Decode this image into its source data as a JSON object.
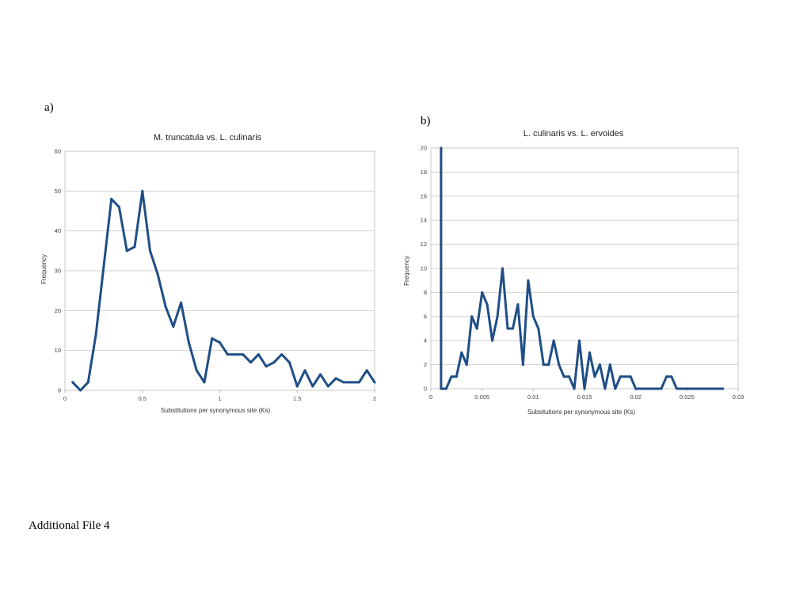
{
  "labels": {
    "panel_a": "a)",
    "panel_b": "b)",
    "footer": "Additional File 4"
  },
  "colors": {
    "series": "#1f4e86",
    "grid": "#d0d0d0"
  },
  "chart_data": [
    {
      "type": "line",
      "title": "M. truncatula vs. L. culinaris",
      "xlabel": "Substitutions per synonymous site (Ks)",
      "ylabel": "Frequency",
      "xlim": [
        0,
        2
      ],
      "ylim": [
        0,
        60
      ],
      "xticks": [
        0,
        0.5,
        1,
        1.5,
        2
      ],
      "xtick_labels": [
        "0",
        "0.5",
        "1",
        "1.5",
        "2"
      ],
      "yticks": [
        0,
        10,
        20,
        30,
        40,
        50,
        60
      ],
      "grid": true,
      "x": [
        0.05,
        0.1,
        0.15,
        0.2,
        0.25,
        0.3,
        0.35,
        0.4,
        0.45,
        0.5,
        0.55,
        0.6,
        0.65,
        0.7,
        0.75,
        0.8,
        0.85,
        0.9,
        0.95,
        1.0,
        1.05,
        1.1,
        1.15,
        1.2,
        1.25,
        1.3,
        1.35,
        1.4,
        1.45,
        1.5,
        1.55,
        1.6,
        1.65,
        1.7,
        1.75,
        1.8,
        1.85,
        1.9,
        1.95,
        2.0
      ],
      "y": [
        2,
        0,
        2,
        14,
        31,
        48,
        46,
        35,
        36,
        50,
        35,
        29,
        21,
        16,
        22,
        12,
        5,
        2,
        13,
        12,
        9,
        9,
        9,
        7,
        9,
        6,
        7,
        9,
        7,
        1,
        5,
        1,
        4,
        1,
        3,
        2,
        2,
        2,
        5,
        2
      ]
    },
    {
      "type": "line",
      "title": "L. culinaris vs. L. ervoides",
      "xlabel": "Subsitutions per synonymous site (Ks)",
      "ylabel": "Frequency",
      "xlim": [
        0,
        0.03
      ],
      "ylim": [
        0,
        20
      ],
      "xticks": [
        0,
        0.005,
        0.01,
        0.015,
        0.02,
        0.025,
        0.03
      ],
      "xtick_labels": [
        "0",
        "0.005",
        "0.01",
        "0.015",
        "0.02",
        "0.025",
        "0.03"
      ],
      "yticks": [
        0,
        2,
        4,
        6,
        8,
        10,
        12,
        14,
        16,
        18,
        20
      ],
      "grid": true,
      "x": [
        0.001,
        0.001,
        0.0015,
        0.002,
        0.0025,
        0.003,
        0.0035,
        0.004,
        0.0045,
        0.005,
        0.0055,
        0.006,
        0.0065,
        0.007,
        0.0075,
        0.008,
        0.0085,
        0.009,
        0.0095,
        0.01,
        0.0105,
        0.011,
        0.0115,
        0.012,
        0.0125,
        0.013,
        0.0135,
        0.014,
        0.0145,
        0.015,
        0.0155,
        0.016,
        0.0165,
        0.017,
        0.0175,
        0.018,
        0.0185,
        0.019,
        0.0195,
        0.02,
        0.0205,
        0.021,
        0.0215,
        0.022,
        0.0225,
        0.023,
        0.0235,
        0.024,
        0.0245,
        0.025,
        0.0255,
        0.026,
        0.0265,
        0.027,
        0.0275,
        0.028,
        0.0285
      ],
      "y": [
        20,
        0,
        0,
        1,
        1,
        3,
        2,
        6,
        5,
        8,
        7,
        4,
        6,
        10,
        5,
        5,
        7,
        2,
        9,
        6,
        5,
        2,
        2,
        4,
        2,
        1,
        1,
        0,
        4,
        0,
        3,
        1,
        2,
        0,
        2,
        0,
        1,
        1,
        1,
        0,
        0,
        0,
        0,
        0,
        0,
        1,
        1,
        0,
        0,
        0,
        0,
        0,
        0,
        0,
        0,
        0,
        0
      ]
    }
  ]
}
